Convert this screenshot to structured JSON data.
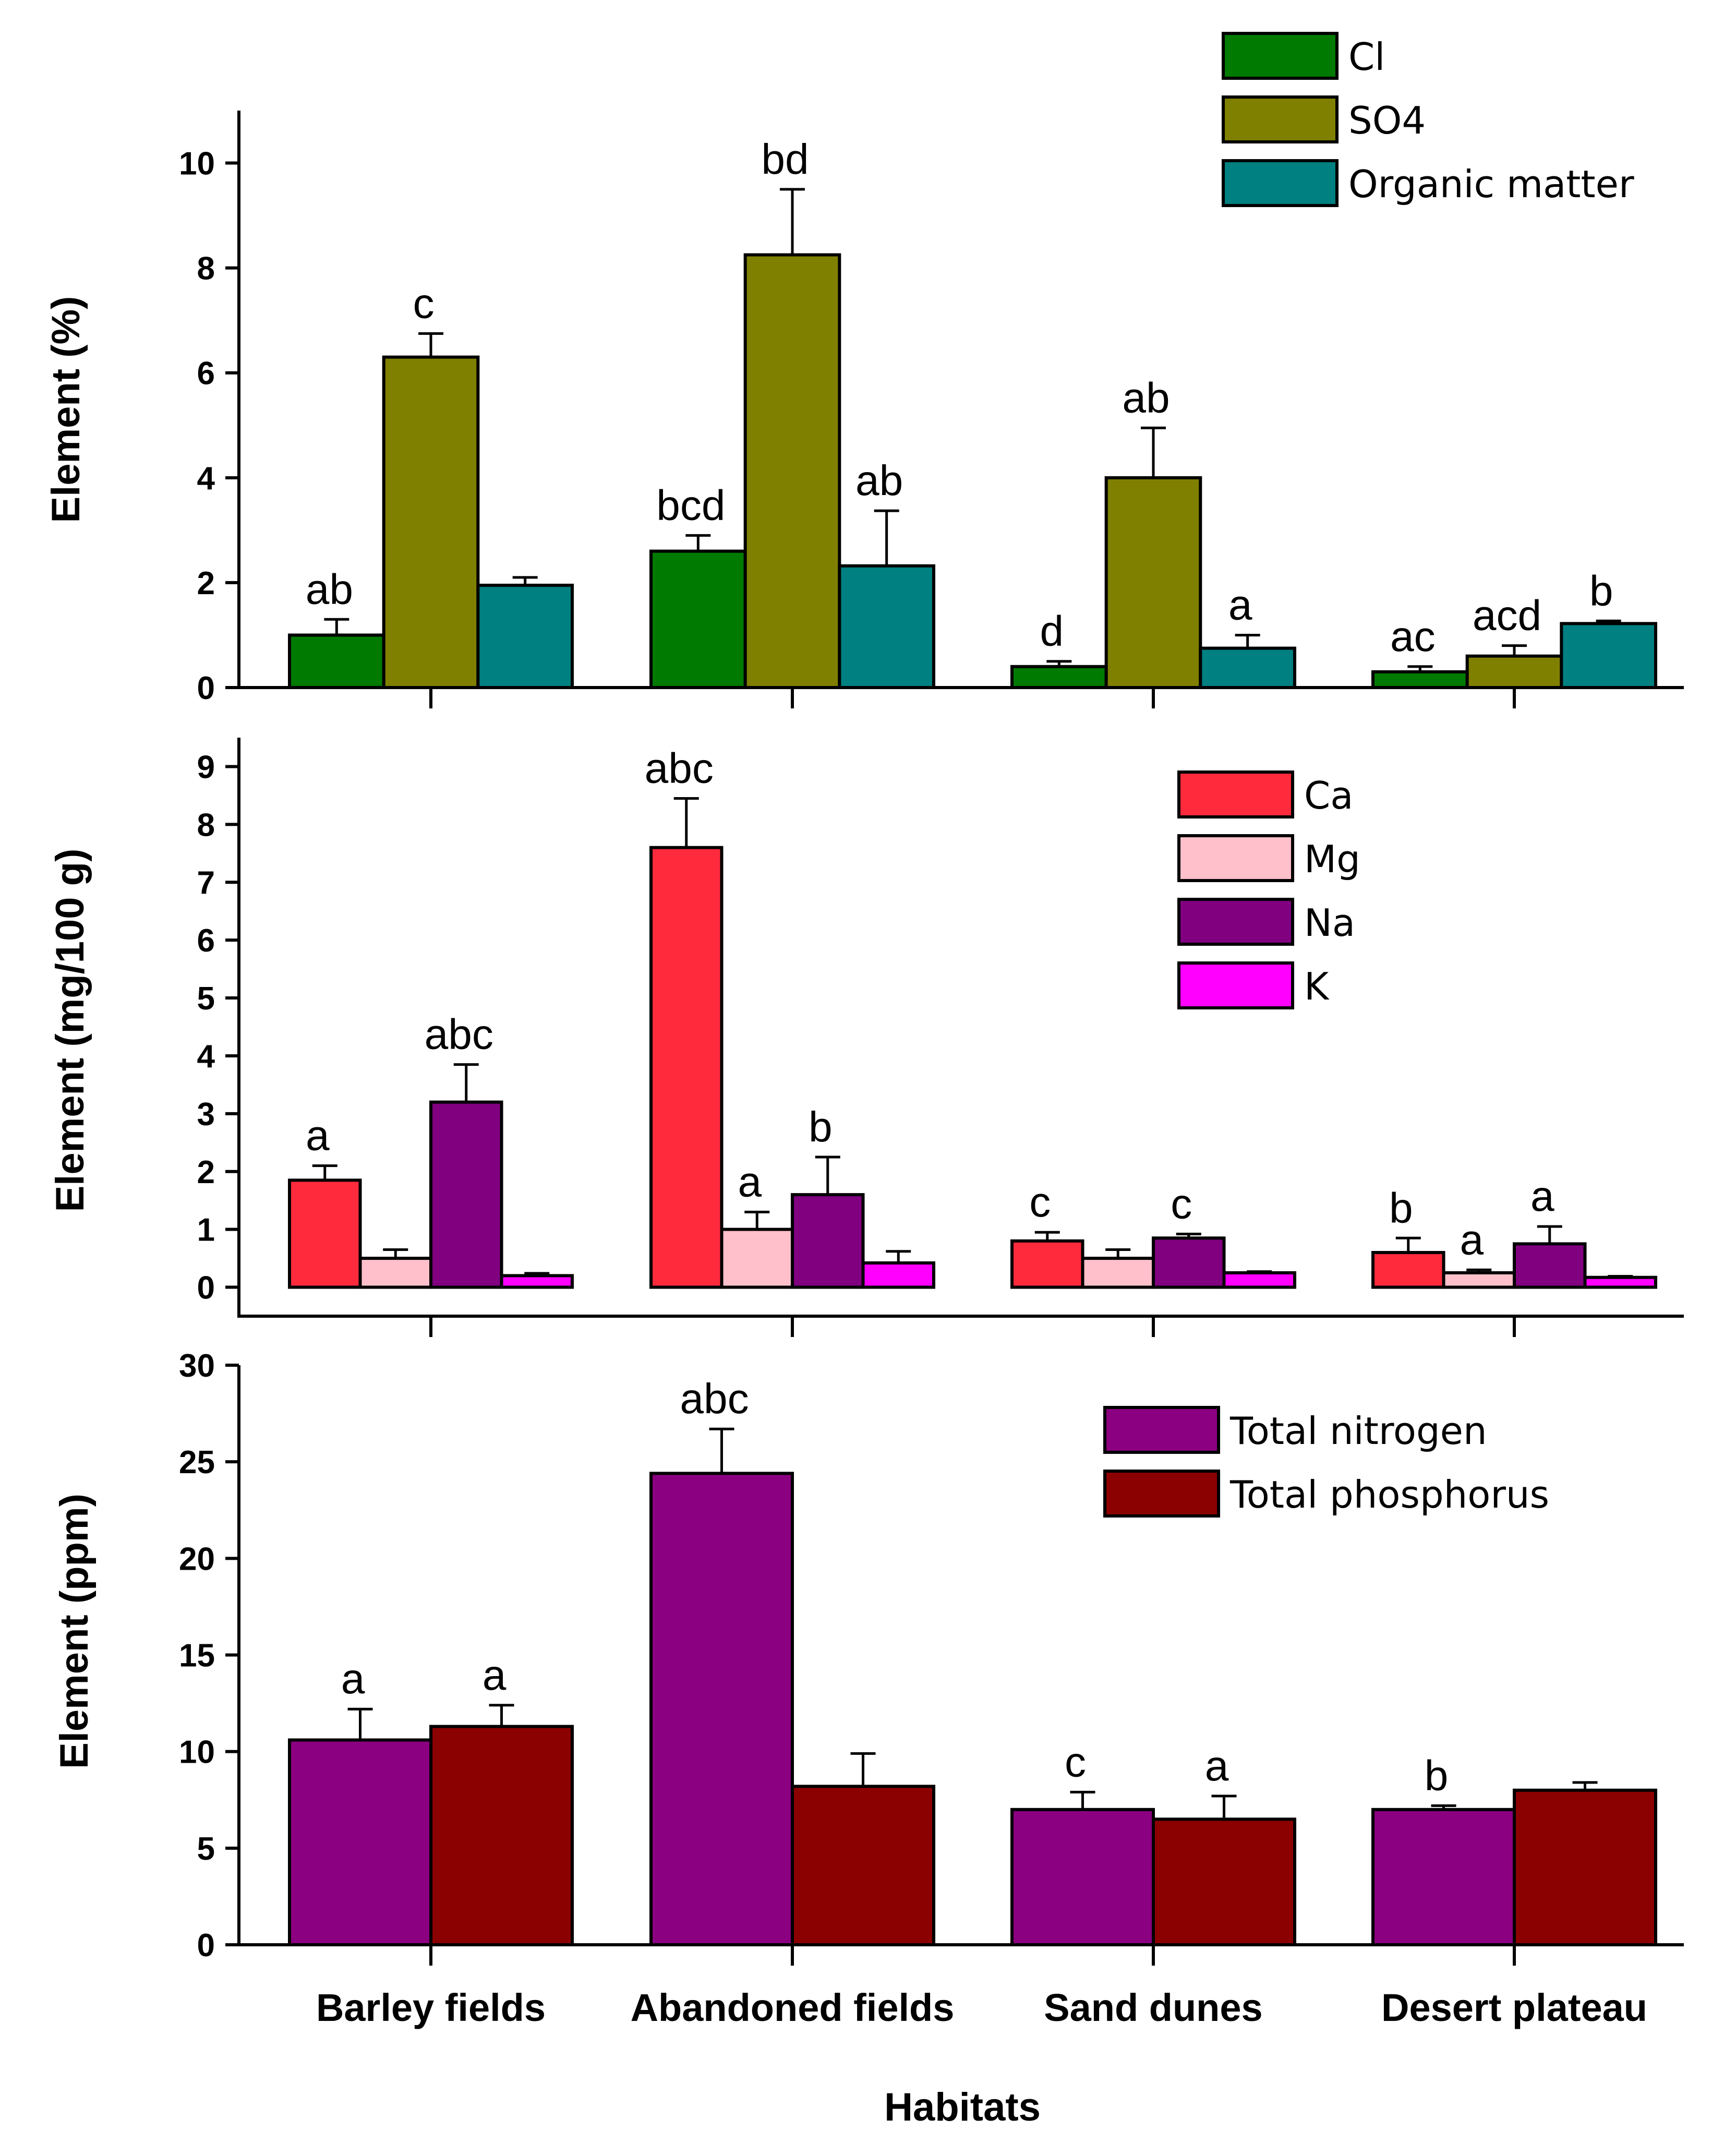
{
  "chart_data": [
    {
      "type": "bar",
      "panel": "top",
      "ylabel": "Element (%)",
      "ylim": [
        0,
        11
      ],
      "yticks": [
        0,
        2,
        4,
        6,
        8,
        10
      ],
      "categories": [
        "Barley fields",
        "Abandoned fields",
        "Sand dunes",
        "Desert plateau"
      ],
      "series": [
        {
          "name": "Cl",
          "color": "#007a00",
          "values": [
            1.0,
            2.6,
            0.4,
            0.3
          ],
          "errors": [
            0.3,
            0.3,
            0.1,
            0.1
          ],
          "labels": [
            "ab",
            "bcd",
            "d",
            "ac"
          ]
        },
        {
          "name": "SO4",
          "color": "#808000",
          "values": [
            6.3,
            8.25,
            4.0,
            0.6
          ],
          "errors": [
            0.45,
            1.25,
            0.95,
            0.2
          ],
          "labels": [
            "c",
            "bd",
            "ab",
            "acd"
          ]
        },
        {
          "name": "Organic matter",
          "color": "#008080",
          "values": [
            1.95,
            2.32,
            0.75,
            1.22
          ],
          "errors": [
            0.15,
            1.05,
            0.25,
            0.05
          ],
          "labels": [
            "",
            "ab",
            "a",
            "b"
          ]
        }
      ],
      "legend": "top-right"
    },
    {
      "type": "bar",
      "panel": "middle",
      "ylabel": "Element (mg/100 g)",
      "ylim": [
        -0.5,
        9.5
      ],
      "yticks": [
        0,
        1,
        2,
        3,
        4,
        5,
        6,
        7,
        8,
        9
      ],
      "categories": [
        "Barley fields",
        "Abandoned fields",
        "Sand dunes",
        "Desert plateau"
      ],
      "series": [
        {
          "name": "Ca",
          "color": "#ff2a3c",
          "values": [
            1.85,
            7.6,
            0.8,
            0.6
          ],
          "errors": [
            0.25,
            0.85,
            0.15,
            0.25
          ],
          "labels": [
            "a",
            "abc",
            "c",
            "b"
          ]
        },
        {
          "name": "Mg",
          "color": "#ffc0cb",
          "values": [
            0.5,
            1.0,
            0.5,
            0.25
          ],
          "errors": [
            0.15,
            0.3,
            0.15,
            0.05
          ],
          "labels": [
            "",
            "a",
            "",
            "a"
          ]
        },
        {
          "name": "Na",
          "color": "#800080",
          "values": [
            3.2,
            1.6,
            0.85,
            0.75
          ],
          "errors": [
            0.65,
            0.65,
            0.07,
            0.3
          ],
          "labels": [
            "abc",
            "b",
            "c",
            "a"
          ]
        },
        {
          "name": "K",
          "color": "#ff00ff",
          "values": [
            0.2,
            0.42,
            0.25,
            0.17
          ],
          "errors": [
            0.04,
            0.2,
            0.02,
            0.02
          ],
          "labels": [
            "",
            "",
            "",
            ""
          ]
        }
      ],
      "legend": "top-right"
    },
    {
      "type": "bar",
      "panel": "bottom",
      "ylabel": "Element (ppm)",
      "xlabel": "Habitats",
      "ylim": [
        0,
        30
      ],
      "yticks": [
        0,
        5,
        10,
        15,
        20,
        25,
        30
      ],
      "categories": [
        "Barley fields",
        "Abandoned fields",
        "Sand dunes",
        "Desert plateau"
      ],
      "series": [
        {
          "name": "Total nitrogen",
          "color": "#8b0080",
          "values": [
            10.6,
            24.4,
            7.0,
            7.0
          ],
          "errors": [
            1.6,
            2.3,
            0.9,
            0.2
          ],
          "labels": [
            "a",
            "abc",
            "c",
            "b"
          ]
        },
        {
          "name": "Total phosphorus",
          "color": "#8b0000",
          "values": [
            11.3,
            8.2,
            6.5,
            8.0
          ],
          "errors": [
            1.1,
            1.7,
            1.2,
            0.4
          ],
          "labels": [
            "a",
            "",
            "a",
            ""
          ]
        }
      ],
      "legend": "top-right"
    }
  ]
}
